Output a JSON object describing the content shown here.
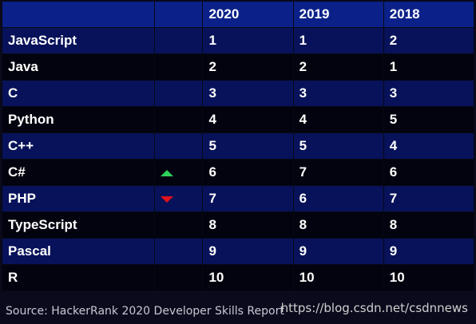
{
  "table": {
    "headers": [
      "",
      "",
      "2020",
      "2019",
      "2018"
    ],
    "rows": [
      {
        "language": "JavaScript",
        "trend": "",
        "y2020": "1",
        "y2019": "1",
        "y2018": "2"
      },
      {
        "language": "Java",
        "trend": "",
        "y2020": "2",
        "y2019": "2",
        "y2018": "1"
      },
      {
        "language": "C",
        "trend": "",
        "y2020": "3",
        "y2019": "3",
        "y2018": "3"
      },
      {
        "language": "Python",
        "trend": "",
        "y2020": "4",
        "y2019": "4",
        "y2018": "5"
      },
      {
        "language": "C++",
        "trend": "",
        "y2020": "5",
        "y2019": "5",
        "y2018": "4"
      },
      {
        "language": "C#",
        "trend": "up",
        "y2020": "6",
        "y2019": "7",
        "y2018": "6"
      },
      {
        "language": "PHP",
        "trend": "down",
        "y2020": "7",
        "y2019": "6",
        "y2018": "7"
      },
      {
        "language": "TypeScript",
        "trend": "",
        "y2020": "8",
        "y2019": "8",
        "y2018": "8"
      },
      {
        "language": "Pascal",
        "trend": "",
        "y2020": "9",
        "y2019": "9",
        "y2018": "9"
      },
      {
        "language": "R",
        "trend": "",
        "y2020": "10",
        "y2019": "10",
        "y2018": "10"
      }
    ]
  },
  "colors": {
    "header_bg": "#0b2189",
    "row_odd_bg": "#07125a",
    "row_even_bg": "#03030f",
    "trend_up": "#2fd15a",
    "trend_down": "#e0121b"
  },
  "icons": {
    "up": "triangle-up-icon",
    "down": "triangle-down-icon"
  },
  "footer": {
    "source": "Source: HackerRank 2020 Developer Skills Report",
    "watermark": "https://blog.csdn.net/csdnnews"
  }
}
